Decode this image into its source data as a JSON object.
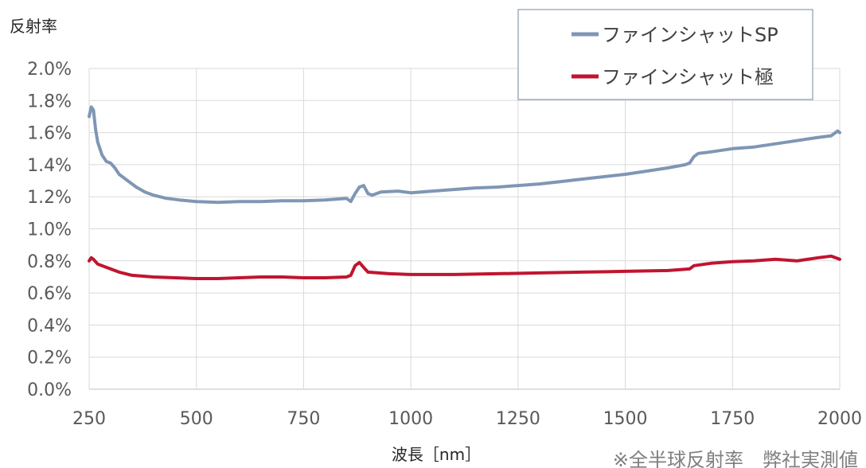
{
  "chart_data": {
    "type": "line",
    "ylabel": "反射率",
    "xlabel": "波長［nm］",
    "note": "※全半球反射率　弊社実測値",
    "xlim": [
      250,
      2000
    ],
    "ylim": [
      0,
      2.0
    ],
    "x_ticks": [
      250,
      500,
      750,
      1000,
      1250,
      1500,
      1750,
      2000
    ],
    "y_ticks": [
      "0.0%",
      "0.2%",
      "0.4%",
      "0.6%",
      "0.8%",
      "1.0%",
      "1.2%",
      "1.4%",
      "1.6%",
      "1.8%",
      "2.0%"
    ],
    "grid": true,
    "legend_position": "top-right",
    "series": [
      {
        "name": "ファインシャットSP",
        "color": "#7f96b4",
        "points": [
          [
            250,
            1.7
          ],
          [
            255,
            1.76
          ],
          [
            260,
            1.74
          ],
          [
            265,
            1.62
          ],
          [
            270,
            1.54
          ],
          [
            280,
            1.46
          ],
          [
            290,
            1.42
          ],
          [
            300,
            1.41
          ],
          [
            310,
            1.38
          ],
          [
            320,
            1.34
          ],
          [
            340,
            1.3
          ],
          [
            360,
            1.26
          ],
          [
            380,
            1.23
          ],
          [
            400,
            1.21
          ],
          [
            430,
            1.19
          ],
          [
            460,
            1.18
          ],
          [
            500,
            1.17
          ],
          [
            550,
            1.165
          ],
          [
            600,
            1.17
          ],
          [
            650,
            1.17
          ],
          [
            700,
            1.175
          ],
          [
            750,
            1.175
          ],
          [
            800,
            1.18
          ],
          [
            850,
            1.19
          ],
          [
            860,
            1.17
          ],
          [
            870,
            1.22
          ],
          [
            880,
            1.26
          ],
          [
            890,
            1.27
          ],
          [
            900,
            1.22
          ],
          [
            910,
            1.21
          ],
          [
            930,
            1.23
          ],
          [
            970,
            1.235
          ],
          [
            1000,
            1.225
          ],
          [
            1050,
            1.235
          ],
          [
            1100,
            1.245
          ],
          [
            1150,
            1.255
          ],
          [
            1200,
            1.26
          ],
          [
            1250,
            1.27
          ],
          [
            1300,
            1.28
          ],
          [
            1350,
            1.295
          ],
          [
            1400,
            1.31
          ],
          [
            1450,
            1.325
          ],
          [
            1500,
            1.34
          ],
          [
            1550,
            1.36
          ],
          [
            1600,
            1.38
          ],
          [
            1640,
            1.4
          ],
          [
            1650,
            1.41
          ],
          [
            1660,
            1.45
          ],
          [
            1670,
            1.47
          ],
          [
            1700,
            1.48
          ],
          [
            1750,
            1.5
          ],
          [
            1800,
            1.51
          ],
          [
            1850,
            1.53
          ],
          [
            1900,
            1.55
          ],
          [
            1950,
            1.57
          ],
          [
            1980,
            1.58
          ],
          [
            1995,
            1.61
          ],
          [
            2000,
            1.6
          ]
        ]
      },
      {
        "name": "ファインシャット極",
        "color": "#c0152f",
        "points": [
          [
            250,
            0.8
          ],
          [
            255,
            0.82
          ],
          [
            260,
            0.81
          ],
          [
            270,
            0.78
          ],
          [
            290,
            0.76
          ],
          [
            320,
            0.73
          ],
          [
            350,
            0.71
          ],
          [
            400,
            0.7
          ],
          [
            450,
            0.695
          ],
          [
            500,
            0.69
          ],
          [
            550,
            0.69
          ],
          [
            600,
            0.695
          ],
          [
            650,
            0.7
          ],
          [
            700,
            0.7
          ],
          [
            750,
            0.695
          ],
          [
            800,
            0.695
          ],
          [
            850,
            0.7
          ],
          [
            860,
            0.71
          ],
          [
            870,
            0.77
          ],
          [
            880,
            0.79
          ],
          [
            890,
            0.76
          ],
          [
            900,
            0.73
          ],
          [
            950,
            0.72
          ],
          [
            1000,
            0.715
          ],
          [
            1100,
            0.715
          ],
          [
            1200,
            0.72
          ],
          [
            1300,
            0.725
          ],
          [
            1400,
            0.73
          ],
          [
            1500,
            0.735
          ],
          [
            1600,
            0.74
          ],
          [
            1650,
            0.75
          ],
          [
            1660,
            0.77
          ],
          [
            1700,
            0.785
          ],
          [
            1750,
            0.795
          ],
          [
            1800,
            0.8
          ],
          [
            1850,
            0.81
          ],
          [
            1900,
            0.8
          ],
          [
            1950,
            0.82
          ],
          [
            1980,
            0.83
          ],
          [
            2000,
            0.81
          ]
        ]
      }
    ]
  }
}
